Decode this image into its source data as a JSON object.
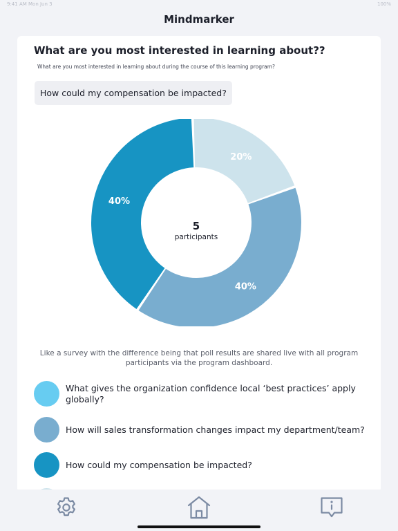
{
  "status_bar": {
    "time": "9:41 AM  Mon Jun 3",
    "right": "100%"
  },
  "app": {
    "title": "Mindmarker"
  },
  "question": {
    "title": "What are you most interested in learning about??",
    "description": "What are you most interested in learning about during the course of this learning program?",
    "selected_answer": "How could my compensation be impacted?"
  },
  "chart_data": {
    "type": "pie",
    "center_count": "5",
    "center_label": "participants",
    "slices": [
      {
        "label": "20%",
        "value": 20,
        "color": "#cde3ec"
      },
      {
        "label": "40%",
        "value": 40,
        "color": "#79adcf"
      },
      {
        "label": "40%",
        "value": 40,
        "color": "#1794c3"
      }
    ]
  },
  "explanation": "Like a survey with the difference being that poll results are shared live with all program participants via the program dashboard.",
  "legend": [
    {
      "text": "What gives the organization confidence local ‘best practices’ apply globally?",
      "color": "#67ccf1"
    },
    {
      "text": "How will sales transformation changes impact my department/team?",
      "color": "#79adcf"
    },
    {
      "text": "How could my compensation be impacted?",
      "color": "#1794c3"
    },
    {
      "text": "",
      "color": "#cde3ec"
    }
  ],
  "tab_bar": {
    "settings_icon": "gear-icon",
    "home_icon": "home-icon",
    "info_icon": "info-message-icon",
    "icon_color": "#7b8aa3"
  }
}
